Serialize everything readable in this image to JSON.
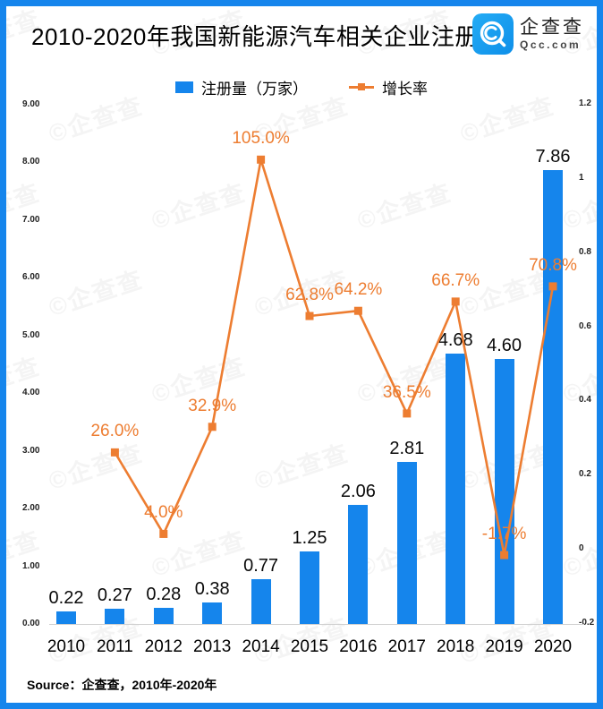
{
  "header": {
    "title": "2010-2020年我国新能源汽车相关企业注册量",
    "logo": {
      "name": "企查查",
      "domain": "Qcc.com"
    }
  },
  "legend": {
    "bar_label": "注册量（万家）",
    "line_label": "增长率"
  },
  "chart_data": {
    "type": "bar+line",
    "title": "2010-2020年我国新能源汽车相关企业注册量",
    "categories": [
      "2010",
      "2011",
      "2012",
      "2013",
      "2014",
      "2015",
      "2016",
      "2017",
      "2018",
      "2019",
      "2020"
    ],
    "series": [
      {
        "name": "注册量（万家）",
        "type": "bar",
        "axis": "left",
        "values": [
          0.22,
          0.27,
          0.28,
          0.38,
          0.77,
          1.25,
          2.06,
          2.81,
          4.68,
          4.6,
          7.86
        ],
        "labels": [
          "0.22",
          "0.27",
          "0.28",
          "0.38",
          "0.77",
          "1.25",
          "2.06",
          "2.81",
          "4.68",
          "4.60",
          "7.86"
        ]
      },
      {
        "name": "增长率",
        "type": "line",
        "axis": "right",
        "values_percent": [
          null,
          26.0,
          4.0,
          32.9,
          105.0,
          62.8,
          64.2,
          36.5,
          66.7,
          -1.7,
          70.8
        ],
        "labels": [
          null,
          "26.0%",
          "4.0%",
          "32.9%",
          "105.0%",
          "62.8%",
          "64.2%",
          "36.5%",
          "66.7%",
          "-1.7%",
          "70.8%"
        ]
      }
    ],
    "left_axis": {
      "min": 0,
      "max": 9,
      "step": 1,
      "tick_labels": [
        "0.00",
        "1.00",
        "2.00",
        "3.00",
        "4.00",
        "5.00",
        "6.00",
        "7.00",
        "8.00",
        "9.00"
      ]
    },
    "right_axis": {
      "min": -0.2,
      "max": 1.2,
      "step": 0.2,
      "tick_labels": [
        "-0.2",
        "0",
        "0.2",
        "0.4",
        "0.6",
        "0.8",
        "1",
        "1.2"
      ]
    },
    "grid": false,
    "legend_position": "top"
  },
  "source": "Source：企查查，2010年-2020年",
  "watermark": "©企查查",
  "colors": {
    "bar": "#1585EC",
    "line": "#ED7D31",
    "frame": "#1585EC",
    "logo": "#15A0F2"
  }
}
